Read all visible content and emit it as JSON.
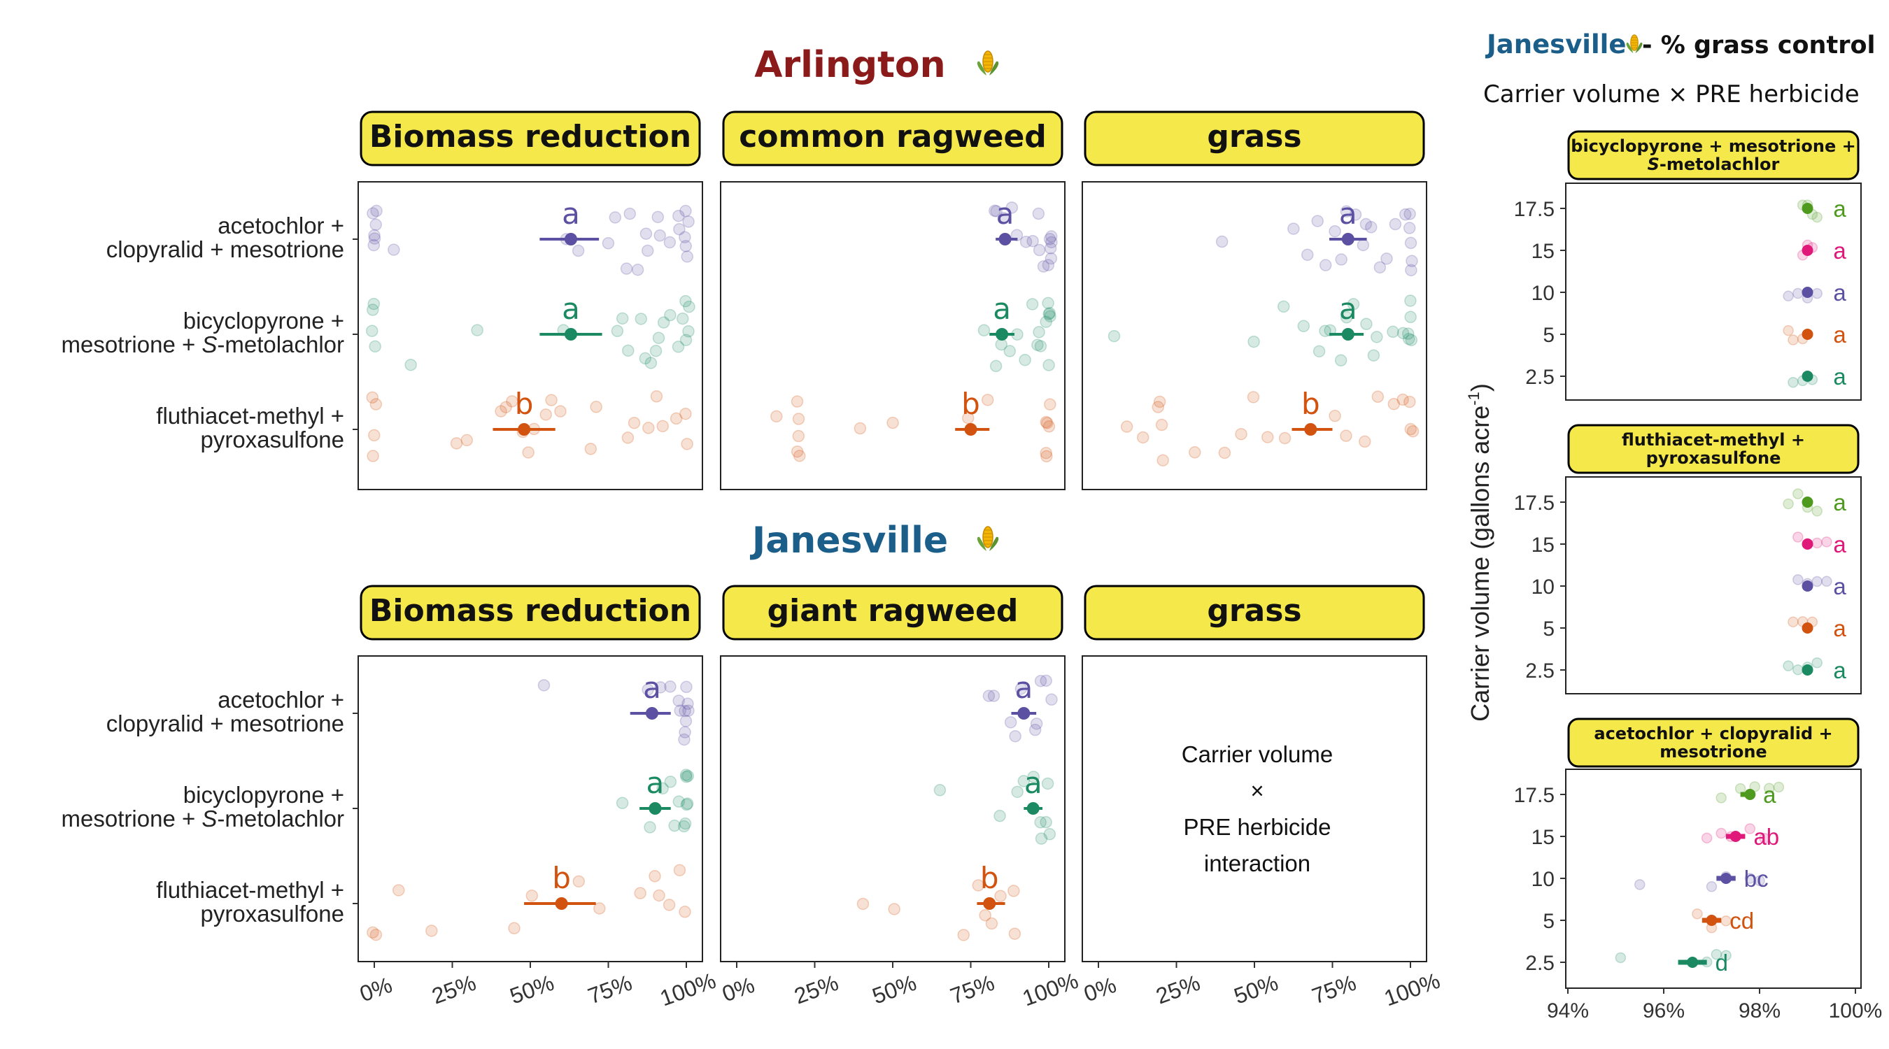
{
  "colors": {
    "acetochlor": "#5B50A2",
    "bicyclopyrone": "#1B8A62",
    "fluthiacet": "#D2520F",
    "strip_fill": "#F5E84A",
    "arlington_title": "#8B1A1A",
    "janesville_title": "#1B5E8A",
    "cv_2_5": "#1B8A62",
    "cv_5": "#D2520F",
    "cv_10": "#5B50A2",
    "cv_15": "#E0187A",
    "cv_17_5": "#4E9A1E"
  },
  "icons": {
    "corn": "corn-icon"
  },
  "herbicide_labels": [
    [
      "acetochlor +",
      "clopyralid + mesotrione"
    ],
    [
      "bicyclopyrone +",
      "mesotrione + S-metolachlor"
    ],
    [
      "fluthiacet-methyl +",
      "pyroxasulfone"
    ]
  ],
  "x_tick_labels": [
    "0%",
    "25%",
    "50%",
    "75%",
    "100%"
  ],
  "chart_data": [
    {
      "type": "scatter",
      "location": "Arlington",
      "strip": "Biomass reduction",
      "x_range": [
        0,
        100
      ],
      "categories": [
        "acetochlor + clopyralid + mesotrione",
        "bicyclopyrone + mesotrione + S-metolachlor",
        "fluthiacet-methyl + pyroxasulfone"
      ],
      "series": [
        {
          "key": "acetochlor",
          "mean": 63,
          "ci": [
            53,
            72
          ],
          "letter": "a",
          "points": [
            0,
            0,
            0,
            0,
            0,
            0,
            7,
            62,
            66,
            75,
            78,
            80,
            82,
            85,
            87,
            88,
            90,
            92,
            95,
            97,
            98,
            99,
            100,
            100,
            100,
            100
          ]
        },
        {
          "key": "bicyclopyrone",
          "mean": 63,
          "ci": [
            53,
            73
          ],
          "letter": "a",
          "points": [
            0,
            0,
            0,
            0,
            12,
            33,
            60,
            78,
            80,
            82,
            85,
            86,
            88,
            90,
            92,
            93,
            95,
            97,
            98,
            100,
            100,
            100,
            100
          ]
        },
        {
          "key": "fluthiacet",
          "mean": 48,
          "ci": [
            38,
            58
          ],
          "letter": "b",
          "points": [
            0,
            0,
            0,
            0,
            26,
            29,
            40,
            43,
            45,
            47,
            50,
            52,
            55,
            57,
            60,
            70,
            72,
            82,
            84,
            88,
            90,
            92,
            96,
            100,
            100
          ]
        }
      ]
    },
    {
      "type": "scatter",
      "location": "Arlington",
      "strip": "common ragweed",
      "x_range": [
        0,
        100
      ],
      "categories": [
        "acetochlor + clopyralid + mesotrione",
        "bicyclopyrone + mesotrione + S-metolachlor",
        "fluthiacet-methyl + pyroxasulfone"
      ],
      "series": [
        {
          "key": "acetochlor",
          "mean": 86,
          "ci": [
            83,
            90
          ],
          "letter": "a",
          "points": [
            82,
            84,
            86,
            88,
            90,
            92,
            95,
            96,
            97,
            98,
            100,
            100,
            100,
            100,
            100,
            100
          ]
        },
        {
          "key": "bicyclopyrone",
          "mean": 85,
          "ci": [
            81,
            89
          ],
          "letter": "a",
          "points": [
            80,
            83,
            85,
            87,
            90,
            92,
            95,
            96,
            97,
            98,
            100,
            100,
            100,
            100,
            100,
            100
          ]
        },
        {
          "key": "fluthiacet",
          "mean": 75,
          "ci": [
            70,
            81
          ],
          "letter": "b",
          "points": [
            12,
            20,
            20,
            20,
            20,
            20,
            40,
            50,
            75,
            80,
            100,
            100,
            100,
            100,
            100,
            100
          ]
        }
      ]
    },
    {
      "type": "scatter",
      "location": "Arlington",
      "strip": "grass",
      "x_range": [
        0,
        100
      ],
      "categories": [
        "acetochlor + clopyralid + mesotrione",
        "bicyclopyrone + mesotrione + S-metolachlor",
        "fluthiacet-methyl + pyroxasulfone"
      ],
      "series": [
        {
          "key": "acetochlor",
          "mean": 80,
          "ci": [
            74,
            86
          ],
          "letter": "a",
          "points": [
            40,
            63,
            67,
            70,
            72,
            75,
            78,
            80,
            82,
            84,
            86,
            88,
            90,
            92,
            95,
            98,
            100,
            100,
            100,
            100,
            100
          ]
        },
        {
          "key": "bicyclopyrone",
          "mean": 80,
          "ci": [
            74,
            85
          ],
          "letter": "a",
          "points": [
            5,
            50,
            60,
            65,
            70,
            72,
            75,
            78,
            80,
            82,
            85,
            88,
            90,
            95,
            98,
            100,
            100,
            100,
            100,
            100
          ]
        },
        {
          "key": "fluthiacet",
          "mean": 68,
          "ci": [
            62,
            75
          ],
          "letter": "b",
          "points": [
            10,
            15,
            20,
            20,
            20,
            20,
            30,
            40,
            45,
            50,
            55,
            60,
            75,
            80,
            85,
            90,
            95,
            98,
            100,
            100,
            100
          ]
        }
      ]
    },
    {
      "type": "scatter",
      "location": "Janesville",
      "strip": "Biomass reduction",
      "x_range": [
        0,
        100
      ],
      "categories": [
        "acetochlor + clopyralid + mesotrione",
        "bicyclopyrone + mesotrione + S-metolachlor",
        "fluthiacet-methyl + pyroxasulfone"
      ],
      "series": [
        {
          "key": "acetochlor",
          "mean": 89,
          "ci": [
            82,
            95
          ],
          "letter": "a",
          "points": [
            55,
            88,
            92,
            95,
            97,
            98,
            99,
            100,
            100,
            100,
            100,
            100,
            100
          ]
        },
        {
          "key": "bicyclopyrone",
          "mean": 90,
          "ci": [
            85,
            95
          ],
          "letter": "a",
          "points": [
            80,
            88,
            92,
            95,
            97,
            98,
            100,
            100,
            100,
            100,
            100,
            100,
            100
          ]
        },
        {
          "key": "fluthiacet",
          "mean": 60,
          "ci": [
            48,
            71
          ],
          "letter": "b",
          "points": [
            0,
            0,
            8,
            18,
            45,
            50,
            65,
            72,
            85,
            90,
            92,
            95,
            97,
            100
          ]
        }
      ]
    },
    {
      "type": "scatter",
      "location": "Janesville",
      "strip": "giant ragweed",
      "x_range": [
        0,
        100
      ],
      "categories": [
        "acetochlor + clopyralid + mesotrione",
        "bicyclopyrone + mesotrione + S-metolachlor",
        "fluthiacet-methyl + pyroxasulfone"
      ],
      "series": [
        {
          "key": "acetochlor",
          "mean": 92,
          "ci": [
            88,
            96
          ],
          "letter": "a",
          "points": [
            80,
            82,
            88,
            90,
            92,
            95,
            97,
            98,
            100,
            100
          ]
        },
        {
          "key": "bicyclopyrone",
          "mean": 95,
          "ci": [
            92,
            98
          ],
          "letter": "a",
          "points": [
            65,
            85,
            90,
            92,
            95,
            97,
            98,
            100,
            100,
            100
          ]
        },
        {
          "key": "fluthiacet",
          "mean": 81,
          "ci": [
            77,
            86
          ],
          "letter": "b",
          "points": [
            40,
            50,
            72,
            78,
            80,
            82,
            85,
            88,
            90
          ]
        }
      ]
    },
    {
      "type": "annotation",
      "location": "Janesville",
      "strip": "grass",
      "text_lines": [
        "Carrier volume",
        "×",
        "PRE herbicide",
        "interaction"
      ]
    }
  ],
  "right_panel": {
    "title_location": "Janesville",
    "title_suffix": "- % grass control",
    "subtitle": "Carrier volume × PRE herbicide",
    "y_axis_title": "Carrier volume (gallons acre",
    "y_axis_title_sup": "-1",
    "y_axis_title_end": ")",
    "y_tick_labels": [
      "17.5",
      "15",
      "10",
      "5",
      "2.5"
    ],
    "x_tick_labels": [
      "94%",
      "96%",
      "98%",
      "100%"
    ],
    "x_range": [
      94,
      100
    ],
    "panels": [
      {
        "strip_lines": [
          "bicyclopyrone + mesotrione +",
          "S-metolachlor"
        ],
        "rows": [
          {
            "cv": "17.5",
            "mean": 99,
            "letter": "a",
            "points": [
              98.9,
              99.0,
              99.1,
              99.2
            ]
          },
          {
            "cv": "15",
            "mean": 99,
            "letter": "a",
            "points": [
              98.9,
              99.0,
              99.1
            ]
          },
          {
            "cv": "10",
            "mean": 99,
            "letter": "a",
            "points": [
              98.6,
              98.8,
              99.0,
              99.2
            ]
          },
          {
            "cv": "5",
            "mean": 99,
            "letter": "a",
            "points": [
              98.6,
              98.7,
              98.9
            ]
          },
          {
            "cv": "2.5",
            "mean": 99,
            "letter": "a",
            "points": [
              98.7,
              98.9,
              99.1
            ]
          }
        ]
      },
      {
        "strip_lines": [
          "fluthiacet-methyl +",
          "pyroxasulfone"
        ],
        "rows": [
          {
            "cv": "17.5",
            "mean": 99,
            "letter": "a",
            "points": [
              98.6,
              98.8,
              99.0,
              99.2
            ]
          },
          {
            "cv": "15",
            "mean": 99,
            "letter": "a",
            "points": [
              98.8,
              99.0,
              99.2,
              99.4
            ]
          },
          {
            "cv": "10",
            "mean": 99,
            "letter": "a",
            "points": [
              98.8,
              99.0,
              99.2,
              99.4
            ]
          },
          {
            "cv": "5",
            "mean": 99,
            "letter": "a",
            "points": [
              98.7,
              98.9,
              99.1
            ]
          },
          {
            "cv": "2.5",
            "mean": 99,
            "letter": "a",
            "points": [
              98.6,
              98.8,
              99.0,
              99.2
            ]
          }
        ]
      },
      {
        "strip_lines": [
          "acetochlor + clopyralid +",
          "mesotrione"
        ],
        "rows": [
          {
            "cv": "17.5",
            "mean": 97.8,
            "ci": [
              97.6,
              97.9
            ],
            "letter": "a",
            "points": [
              97.2,
              97.6,
              97.9,
              98.2,
              98.4
            ]
          },
          {
            "cv": "15",
            "mean": 97.5,
            "ci": [
              97.3,
              97.7
            ],
            "letter": "ab",
            "points": [
              96.9,
              97.2,
              97.4,
              97.8,
              98.1
            ]
          },
          {
            "cv": "10",
            "mean": 97.3,
            "ci": [
              97.1,
              97.5
            ],
            "letter": "bc",
            "points": [
              95.5,
              97.0,
              97.3,
              97.8,
              98.0
            ]
          },
          {
            "cv": "5",
            "mean": 97.0,
            "ci": [
              96.8,
              97.2
            ],
            "letter": "cd",
            "points": [
              96.7,
              97.0,
              97.3
            ]
          },
          {
            "cv": "2.5",
            "mean": 96.6,
            "ci": [
              96.3,
              96.9
            ],
            "letter": "d",
            "points": [
              95.1,
              96.9,
              97.1,
              97.3
            ]
          }
        ]
      }
    ]
  }
}
